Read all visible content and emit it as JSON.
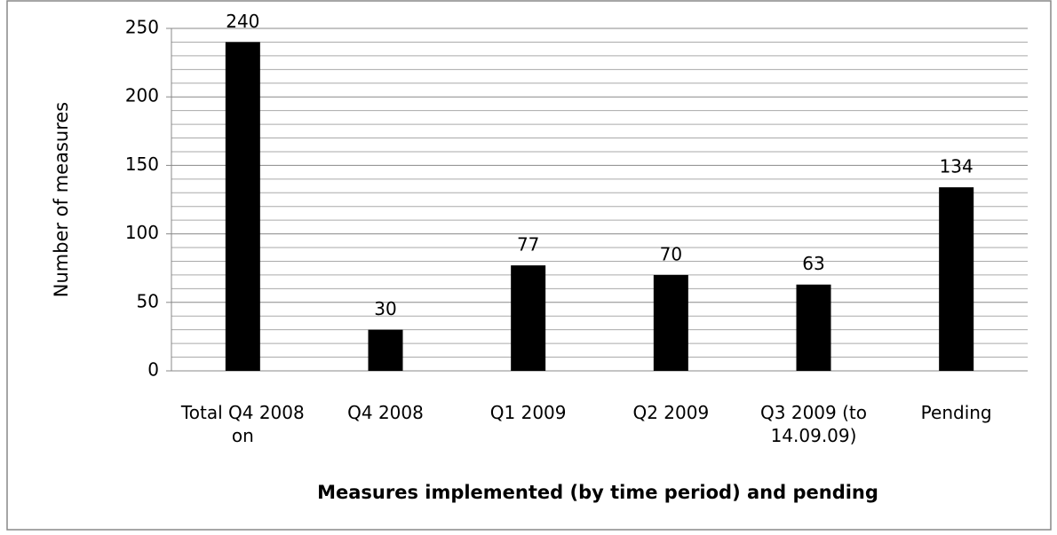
{
  "chart_data": {
    "type": "bar",
    "categories": [
      "Total Q4 2008 on",
      "Q4 2008",
      "Q1 2009",
      "Q2 2009",
      "Q3 2009 (to 14.09.09)",
      "Pending"
    ],
    "values": [
      240,
      30,
      77,
      70,
      63,
      134
    ],
    "color": "#000000",
    "x_label": "Measures implemented (by time period) and pending",
    "y_label": "Number of measures",
    "ylim": [
      0,
      250
    ],
    "yticks": [
      0,
      50,
      100,
      150,
      200,
      250
    ],
    "minor_yticks": [
      10,
      20,
      30,
      40,
      60,
      70,
      80,
      90,
      110,
      120,
      130,
      140,
      160,
      170,
      180,
      190,
      210,
      220,
      230,
      240
    ],
    "grid": true
  }
}
